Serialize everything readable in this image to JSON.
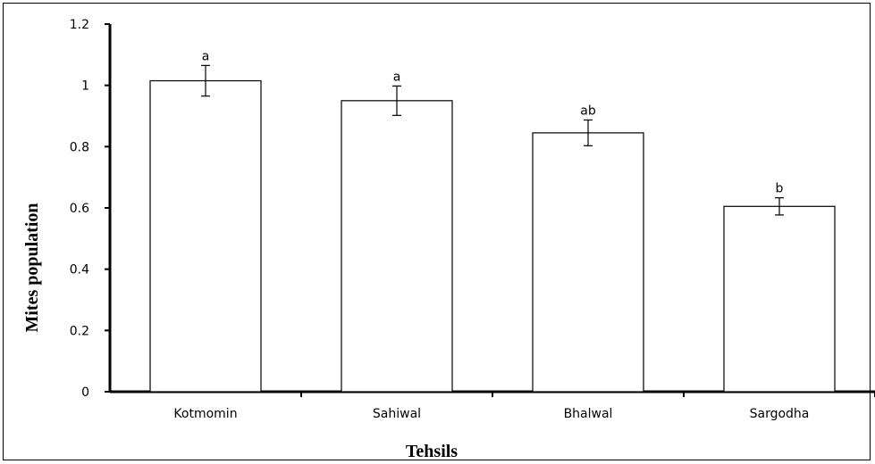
{
  "chart_data": {
    "type": "bar",
    "categories": [
      "Kotmomin",
      "Sahiwal",
      "Bhalwal",
      "Sargodha"
    ],
    "values": [
      1.015,
      0.95,
      0.845,
      0.605
    ],
    "errors": [
      0.05,
      0.048,
      0.042,
      0.028
    ],
    "significance": [
      "a",
      "a",
      "ab",
      "b"
    ],
    "xlabel": "Tehsils",
    "ylabel": "Mites population",
    "ylim": [
      0,
      1.2
    ],
    "yticks": [
      0,
      0.2,
      0.4,
      0.6,
      0.8,
      1,
      1.2
    ],
    "ytick_labels": [
      "0",
      "0.2",
      "0.4",
      "0.6",
      "0.8",
      "1",
      "1.2"
    ],
    "bar_fill": "#ffffff",
    "bar_stroke": "#000000",
    "grid": false,
    "legend": "none"
  }
}
